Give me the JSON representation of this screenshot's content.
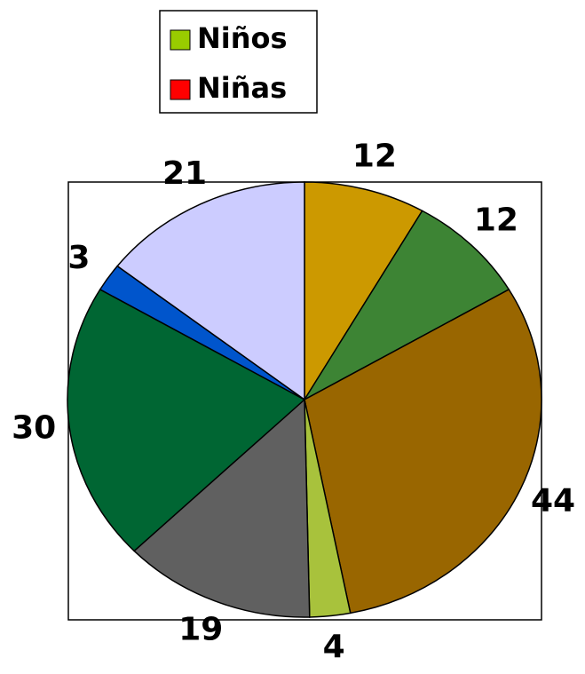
{
  "chart_data": {
    "type": "pie",
    "values": [
      12,
      12,
      44,
      4,
      19,
      30,
      3,
      21
    ],
    "colors": [
      "#cc9900",
      "#3d8434",
      "#996600",
      "#a8c23c",
      "#606060",
      "#006633",
      "#0055cc",
      "#ccccff"
    ],
    "legend": [
      {
        "name": "Niños",
        "color": "#99cc00"
      },
      {
        "name": "Niñas",
        "color": "#ff0000"
      }
    ]
  }
}
